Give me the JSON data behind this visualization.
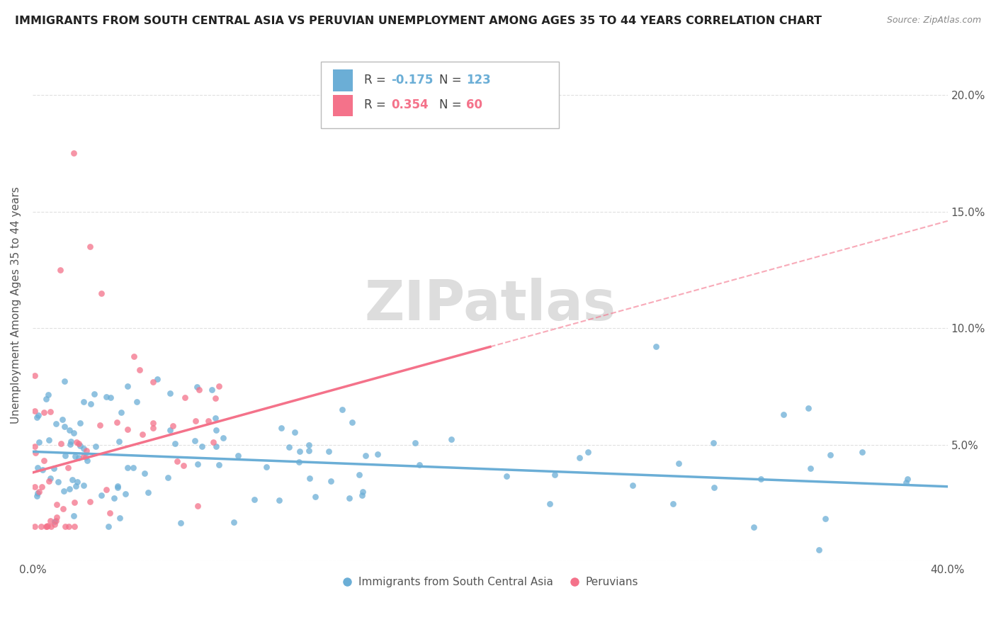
{
  "title": "IMMIGRANTS FROM SOUTH CENTRAL ASIA VS PERUVIAN UNEMPLOYMENT AMONG AGES 35 TO 44 YEARS CORRELATION CHART",
  "source": "Source: ZipAtlas.com",
  "ylabel": "Unemployment Among Ages 35 to 44 years",
  "xlim": [
    0.0,
    0.4
  ],
  "ylim": [
    0.0,
    0.22
  ],
  "xtick_positions": [
    0.0,
    0.05,
    0.1,
    0.15,
    0.2,
    0.25,
    0.3,
    0.35,
    0.4
  ],
  "xticklabels": [
    "0.0%",
    "",
    "",
    "",
    "",
    "",
    "",
    "",
    "40.0%"
  ],
  "ytick_positions": [
    0.0,
    0.05,
    0.1,
    0.15,
    0.2
  ],
  "yticklabels_right": [
    "",
    "5.0%",
    "10.0%",
    "15.0%",
    "20.0%"
  ],
  "blue_color": "#6baed6",
  "pink_color": "#f4728a",
  "blue_R": -0.175,
  "blue_N": 123,
  "pink_R": 0.354,
  "pink_N": 60,
  "watermark": "ZIPatlas",
  "legend_label_blue": "Immigrants from South Central Asia",
  "legend_label_pink": "Peruvians",
  "blue_trend": [
    0.047,
    0.032
  ],
  "pink_trend": [
    0.038,
    0.092
  ]
}
